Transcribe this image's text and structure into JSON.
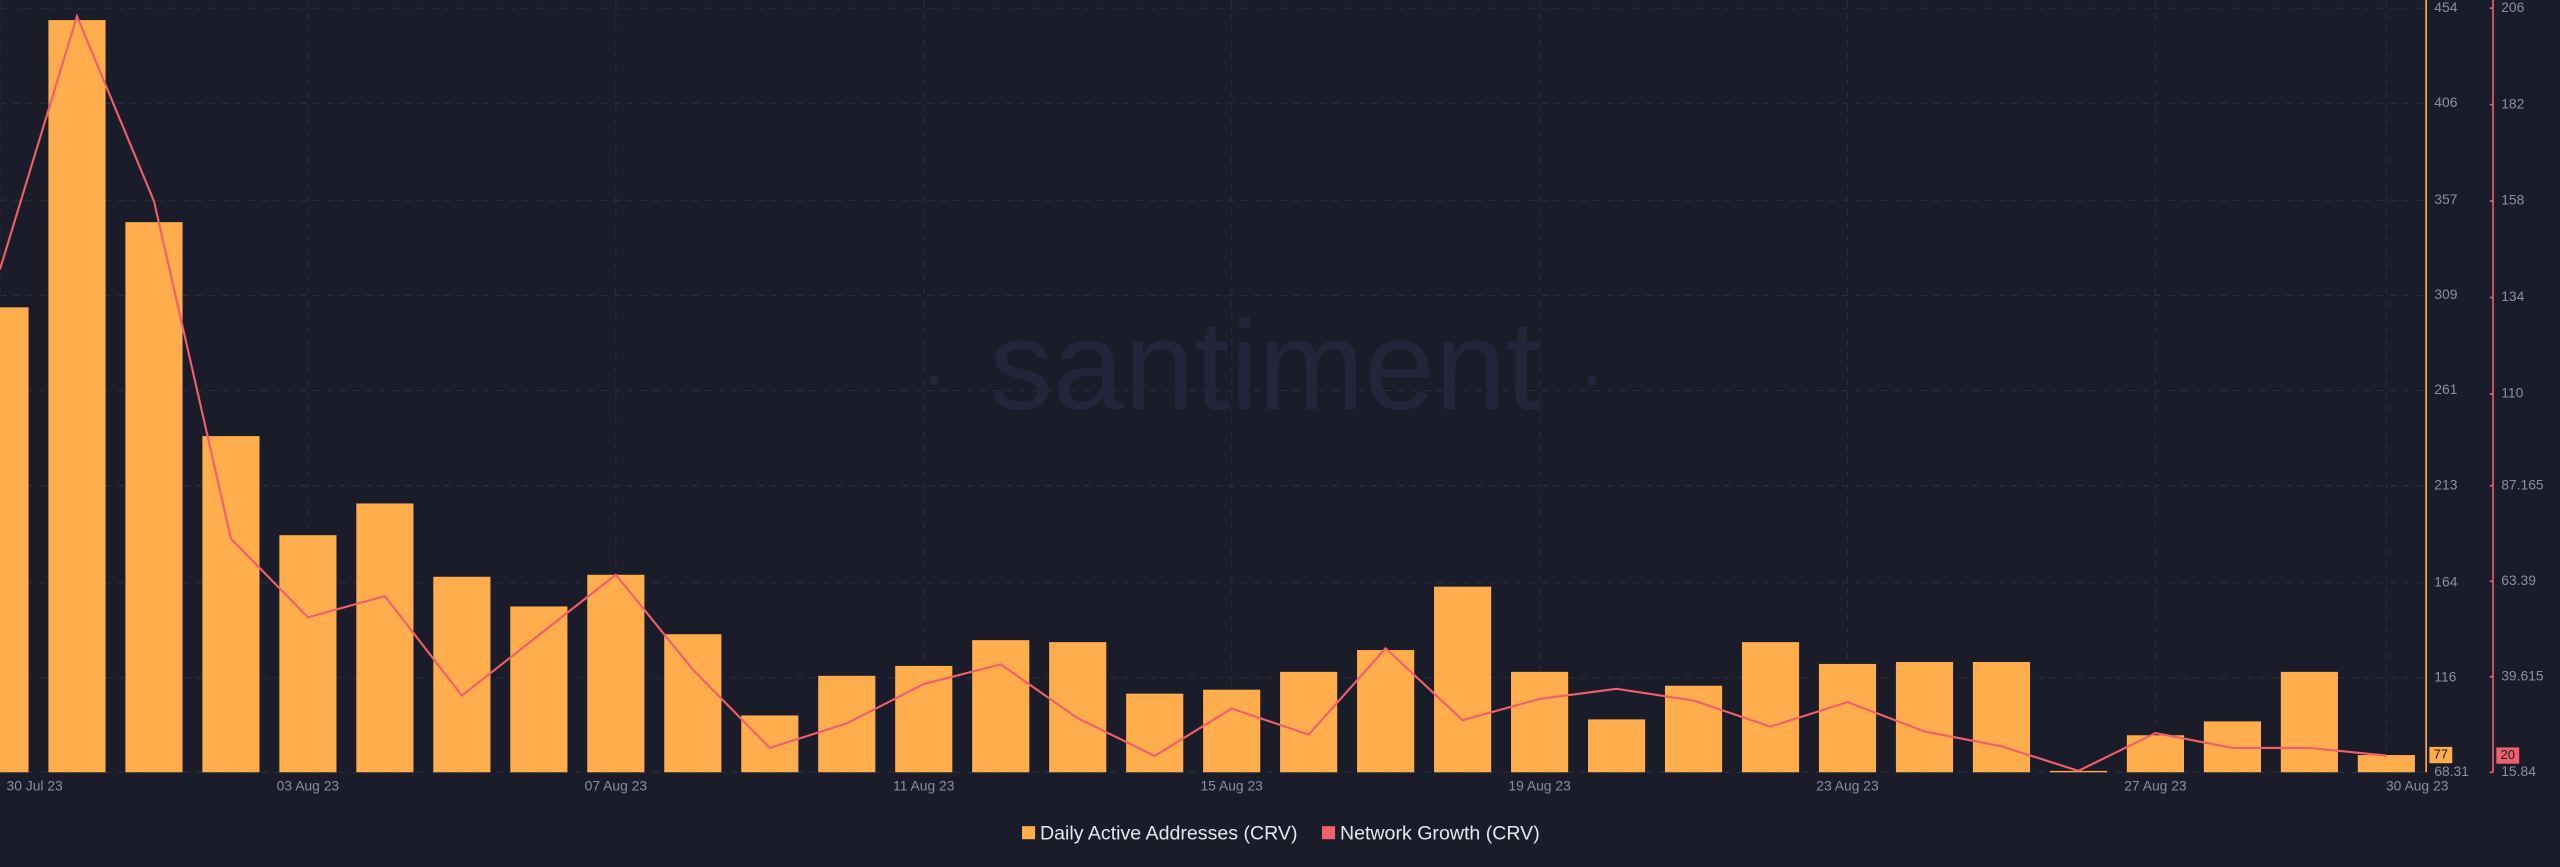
{
  "chart_data": {
    "type": "bar",
    "watermark": "santiment",
    "categories": [
      "30 Jul 23",
      null,
      null,
      null,
      "03 Aug 23",
      null,
      null,
      null,
      "07 Aug 23",
      null,
      null,
      null,
      "11 Aug 23",
      null,
      null,
      null,
      "15 Aug 23",
      null,
      null,
      null,
      "19 Aug 23",
      null,
      null,
      null,
      "23 Aug 23",
      null,
      null,
      null,
      "27 Aug 23",
      null,
      null,
      "30 Aug 23"
    ],
    "series": [
      {
        "name": "Daily Active Addresses (CRV)",
        "type": "bar",
        "axis": "y",
        "color": "#ffad4d",
        "values": [
          303,
          448,
          346,
          238,
          188,
          204,
          167,
          152,
          168,
          138,
          97,
          117,
          122,
          135,
          134,
          108,
          110,
          119,
          130,
          162,
          119,
          95,
          112,
          134,
          123,
          124,
          124,
          69,
          87,
          94,
          119,
          77
        ]
      },
      {
        "name": "Network Growth (CRV)",
        "type": "line",
        "axis": "y2",
        "color": "#ef5f6c",
        "values": [
          141,
          204,
          158,
          74,
          54.4,
          59.7,
          34.9,
          50,
          65,
          41.4,
          21.9,
          28,
          37.8,
          42.7,
          29.3,
          19.9,
          31.7,
          25.2,
          46.7,
          28.8,
          34.1,
          36.6,
          33.7,
          27.2,
          33.3,
          26,
          22.3,
          16.2,
          25.6,
          21.9,
          21.9,
          20
        ]
      }
    ],
    "ylim": [
      68.31,
      454
    ],
    "yticks": [
      68.31,
      116,
      164,
      213,
      261,
      309,
      357,
      406,
      454
    ],
    "y2lim": [
      15.84,
      206
    ],
    "y2ticks": [
      15.84,
      39.615,
      63.39,
      87.165,
      110,
      134,
      158,
      182,
      206
    ],
    "grid": true
  }
}
